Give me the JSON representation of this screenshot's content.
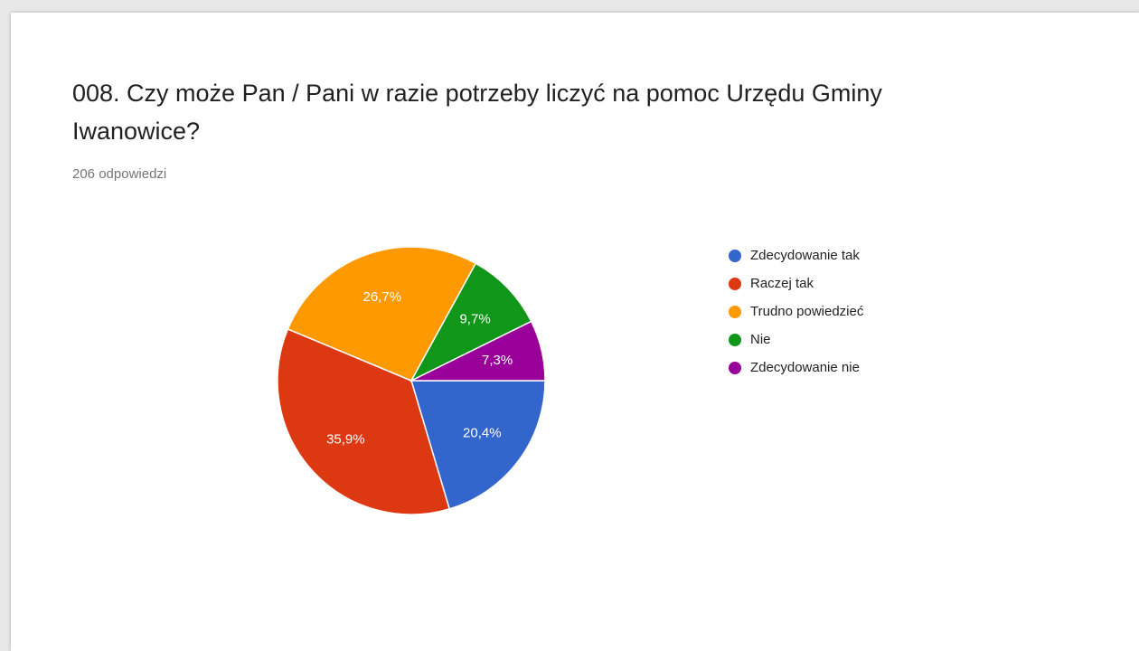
{
  "chart_data": {
    "type": "pie",
    "title": "008. Czy może Pan / Pani w razie potrzeby liczyć na pomoc Urzędu Gminy Iwanowice?",
    "subtitle": "206 odpowiedzi",
    "categories": [
      "Zdecydowanie tak",
      "Raczej tak",
      "Trudno powiedzieć",
      "Nie",
      "Zdecydowanie nie"
    ],
    "values": [
      20.4,
      35.9,
      26.7,
      9.7,
      7.3
    ],
    "value_labels": [
      "20,4%",
      "35,9%",
      "26,7%",
      "9,7%",
      "7,3%"
    ],
    "colors": [
      "#3366cc",
      "#dc3912",
      "#ff9900",
      "#109618",
      "#990099"
    ],
    "legend": "right"
  }
}
